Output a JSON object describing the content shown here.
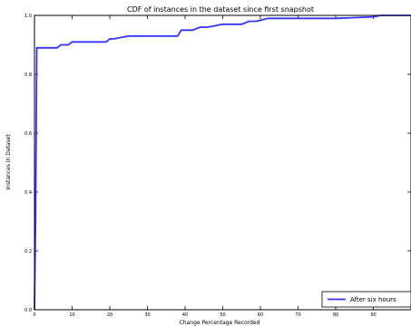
{
  "chart_data": {
    "type": "line",
    "title": "CDF of instances in the dataset since first snapshot",
    "xlabel": "Change Percentage Recorded",
    "ylabel": "Instances in Dataset",
    "xlim": [
      0,
      100
    ],
    "ylim": [
      0.0,
      1.0
    ],
    "x_ticks": [
      "0",
      "10",
      "20",
      "30",
      "40",
      "50",
      "60",
      "70",
      "80",
      "90"
    ],
    "y_ticks": [
      "0.0",
      "0.2",
      "0.4",
      "0.6",
      "0.8",
      "1.0"
    ],
    "grid": false,
    "legend_position": "bottom-right",
    "series": [
      {
        "name": "After six hours",
        "color": "#3333ff",
        "x": [
          0,
          0.3,
          0.6,
          1,
          3,
          5,
          6,
          7,
          9,
          10,
          15,
          19,
          20,
          21,
          25,
          28,
          30,
          33,
          38,
          39,
          42,
          44,
          46,
          50,
          53,
          55,
          57,
          59,
          62,
          70,
          80,
          90,
          92,
          100
        ],
        "y": [
          0.0,
          0.3,
          0.89,
          0.89,
          0.89,
          0.89,
          0.89,
          0.9,
          0.9,
          0.91,
          0.91,
          0.91,
          0.92,
          0.92,
          0.93,
          0.93,
          0.93,
          0.93,
          0.93,
          0.95,
          0.95,
          0.96,
          0.96,
          0.97,
          0.97,
          0.97,
          0.98,
          0.98,
          0.99,
          0.99,
          0.99,
          0.995,
          1.0,
          1.0
        ]
      }
    ]
  }
}
